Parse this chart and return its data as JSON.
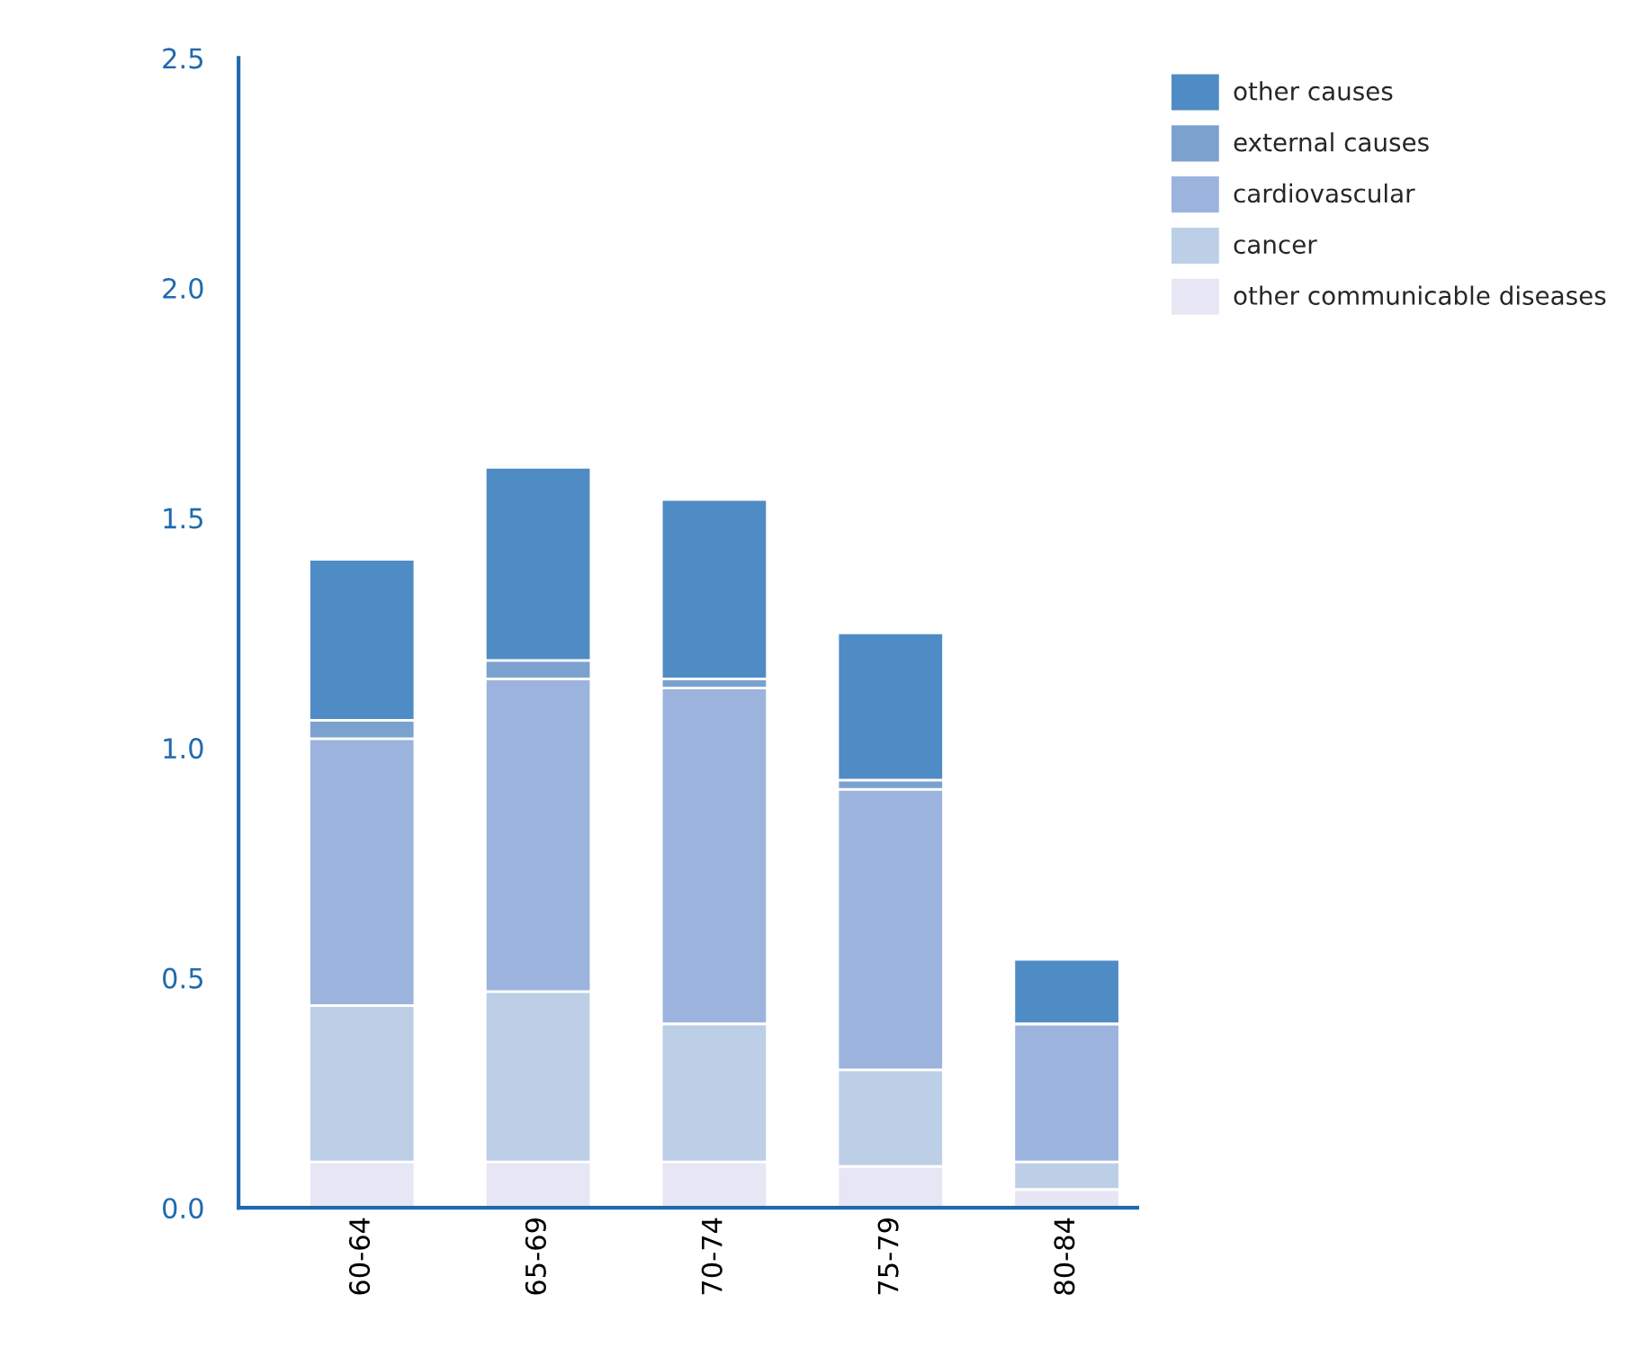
{
  "chart_data": {
    "type": "bar",
    "stacked": true,
    "categories": [
      "60-64",
      "65-69",
      "70-74",
      "75-79",
      "80-84"
    ],
    "series": [
      {
        "name": "other communicable diseases",
        "color": "#e6e6f5",
        "values": [
          0.1,
          0.1,
          0.1,
          0.09,
          0.04
        ]
      },
      {
        "name": "cancer",
        "color": "#bccfe6",
        "values": [
          0.34,
          0.37,
          0.3,
          0.21,
          0.06
        ]
      },
      {
        "name": "cardiovascular",
        "color": "#9cb4dd",
        "values": [
          0.58,
          0.68,
          0.73,
          0.61,
          0.3
        ]
      },
      {
        "name": "external causes",
        "color": "#7ba1cf",
        "values": [
          0.04,
          0.04,
          0.02,
          0.02,
          0.0
        ]
      },
      {
        "name": "other causes",
        "color": "#4f8cc6",
        "values": [
          0.35,
          0.42,
          0.39,
          0.32,
          0.14
        ]
      }
    ],
    "ylim": [
      0,
      2.5
    ],
    "yticks": [
      {
        "value": 0,
        "label": "0.0"
      },
      0.5,
      {
        "value": 1,
        "label": "1.0"
      },
      1.5,
      {
        "value": 2,
        "label": "2.0"
      },
      2.5
    ],
    "grid": false,
    "legend": "top right"
  }
}
